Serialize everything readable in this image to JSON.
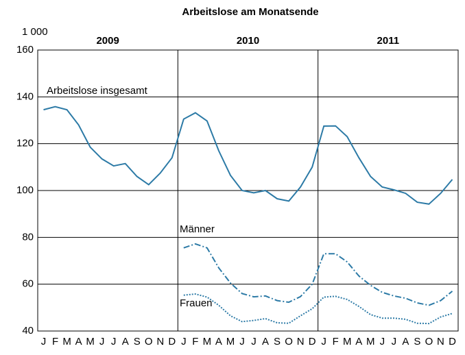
{
  "chart_data": {
    "type": "line",
    "title": "Arbeitslose am Monatsende",
    "unit": "1 000",
    "categories": [
      "J",
      "F",
      "M",
      "A",
      "M",
      "J",
      "J",
      "A",
      "S",
      "O",
      "N",
      "D",
      "J",
      "F",
      "M",
      "A",
      "M",
      "J",
      "J",
      "A",
      "S",
      "O",
      "N",
      "D",
      "J",
      "F",
      "M",
      "A",
      "M",
      "J",
      "J",
      "A",
      "S",
      "O",
      "N",
      "D"
    ],
    "years": [
      "2009",
      "2010",
      "2011"
    ],
    "series": [
      {
        "name": "Arbeitslose insgesamt",
        "color": "#2c7aa6",
        "dash": "solid",
        "values": [
          134.5,
          135.8,
          134.5,
          128,
          118.5,
          113.5,
          110.5,
          111.5,
          106,
          102.5,
          107.5,
          114,
          130.5,
          133.2,
          129.7,
          117,
          106.5,
          100,
          99,
          100,
          96.5,
          95.5,
          101.5,
          110,
          127.5,
          127.6,
          123,
          114,
          106,
          101.5,
          100.3,
          98.8,
          95,
          94.2,
          98.8,
          104.7
        ]
      },
      {
        "name": "Männer",
        "color": "#2c7aa6",
        "dash": "dashdot",
        "values": [
          null,
          null,
          null,
          null,
          null,
          null,
          null,
          null,
          null,
          null,
          null,
          null,
          75.5,
          77.2,
          75.5,
          67,
          60.5,
          56,
          54.6,
          55,
          53,
          52.3,
          54.7,
          60,
          73,
          73,
          69.5,
          63.5,
          59.5,
          56.5,
          55,
          54,
          52,
          51,
          53,
          57
        ]
      },
      {
        "name": "Frauen",
        "color": "#2c7aa6",
        "dash": "dotted",
        "values": [
          null,
          null,
          null,
          null,
          null,
          null,
          null,
          null,
          null,
          null,
          null,
          null,
          55.3,
          55.8,
          54.5,
          51,
          46.5,
          44,
          44.5,
          45.3,
          43.5,
          43.3,
          46.5,
          49.5,
          54.5,
          54.8,
          53.5,
          50.5,
          47,
          45.5,
          45.5,
          45,
          43.3,
          43.2,
          46,
          47.5
        ]
      }
    ],
    "ylim": [
      40,
      160
    ],
    "yticks": [
      40,
      60,
      80,
      100,
      120,
      140,
      160
    ],
    "grid": true
  }
}
